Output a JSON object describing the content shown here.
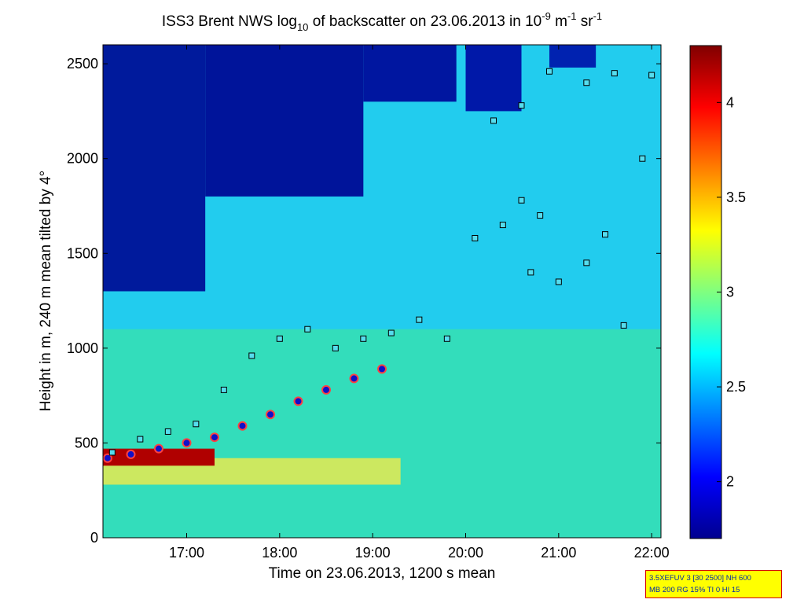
{
  "chart_data": {
    "type": "heatmap",
    "title_parts": {
      "a": "ISS3 Brent NWS log",
      "a_sub": "10",
      "b": " of backscatter on 23.06.2013 in 10",
      "b_sup": "-9",
      "c": " m",
      "c_sup": "-1",
      "d": " sr",
      "d_sup": "-1"
    },
    "xlabel": "Time on 23.06.2013, 1200 s mean",
    "ylabel": "Height in m, 240 m mean tilted by 4°",
    "x_range_hours": [
      16.1,
      22.1
    ],
    "ylim": [
      0,
      2600
    ],
    "x_ticks": [
      {
        "t": 17,
        "label": "17:00"
      },
      {
        "t": 18,
        "label": "18:00"
      },
      {
        "t": 19,
        "label": "19:00"
      },
      {
        "t": 20,
        "label": "20:00"
      },
      {
        "t": 21,
        "label": "21:00"
      },
      {
        "t": 22,
        "label": "22:00"
      }
    ],
    "y_ticks": [
      {
        "v": 0,
        "label": "0"
      },
      {
        "v": 500,
        "label": "500"
      },
      {
        "v": 1000,
        "label": "1000"
      },
      {
        "v": 1500,
        "label": "1500"
      },
      {
        "v": 2000,
        "label": "2000"
      },
      {
        "v": 2500,
        "label": "2500"
      }
    ],
    "colorbar": {
      "range": [
        1.7,
        4.3
      ],
      "ticks": [
        {
          "v": 2,
          "label": "2"
        },
        {
          "v": 2.5,
          "label": "2.5"
        },
        {
          "v": 3,
          "label": "3"
        },
        {
          "v": 3.5,
          "label": "3.5"
        },
        {
          "v": 4,
          "label": "4"
        }
      ],
      "colormap": "jet"
    },
    "mixing_layer_height": [
      {
        "t": 16.15,
        "h": 420
      },
      {
        "t": 16.4,
        "h": 440
      },
      {
        "t": 16.7,
        "h": 470
      },
      {
        "t": 17.0,
        "h": 500
      },
      {
        "t": 17.3,
        "h": 530
      },
      {
        "t": 17.6,
        "h": 590
      },
      {
        "t": 17.9,
        "h": 650
      },
      {
        "t": 18.2,
        "h": 720
      },
      {
        "t": 18.5,
        "h": 780
      },
      {
        "t": 18.8,
        "h": 840
      },
      {
        "t": 19.1,
        "h": 890
      }
    ],
    "detected_layers": [
      {
        "t": 16.2,
        "h": 450
      },
      {
        "t": 16.5,
        "h": 520
      },
      {
        "t": 16.8,
        "h": 560
      },
      {
        "t": 17.1,
        "h": 600
      },
      {
        "t": 17.4,
        "h": 780
      },
      {
        "t": 17.7,
        "h": 960
      },
      {
        "t": 18.0,
        "h": 1050
      },
      {
        "t": 18.3,
        "h": 1100
      },
      {
        "t": 18.6,
        "h": 1000
      },
      {
        "t": 18.9,
        "h": 1050
      },
      {
        "t": 19.2,
        "h": 1080
      },
      {
        "t": 19.5,
        "h": 1150
      },
      {
        "t": 19.8,
        "h": 1050
      },
      {
        "t": 20.1,
        "h": 1580
      },
      {
        "t": 20.4,
        "h": 1650
      },
      {
        "t": 20.6,
        "h": 1780
      },
      {
        "t": 20.8,
        "h": 1700
      },
      {
        "t": 20.7,
        "h": 1400
      },
      {
        "t": 21.0,
        "h": 1350
      },
      {
        "t": 21.3,
        "h": 1450
      },
      {
        "t": 21.5,
        "h": 1600
      },
      {
        "t": 21.7,
        "h": 1120
      },
      {
        "t": 20.3,
        "h": 2200
      },
      {
        "t": 20.6,
        "h": 2280
      },
      {
        "t": 20.9,
        "h": 2460
      },
      {
        "t": 21.3,
        "h": 2400
      },
      {
        "t": 21.6,
        "h": 2450
      },
      {
        "t": 21.9,
        "h": 2000
      },
      {
        "t": 22.0,
        "h": 2440
      }
    ],
    "info_box": {
      "line1": "3.5XEFUV 3 [30 2500] NH 600",
      "line2": "MB 200 RG 15% TI 0 HI 15"
    }
  }
}
